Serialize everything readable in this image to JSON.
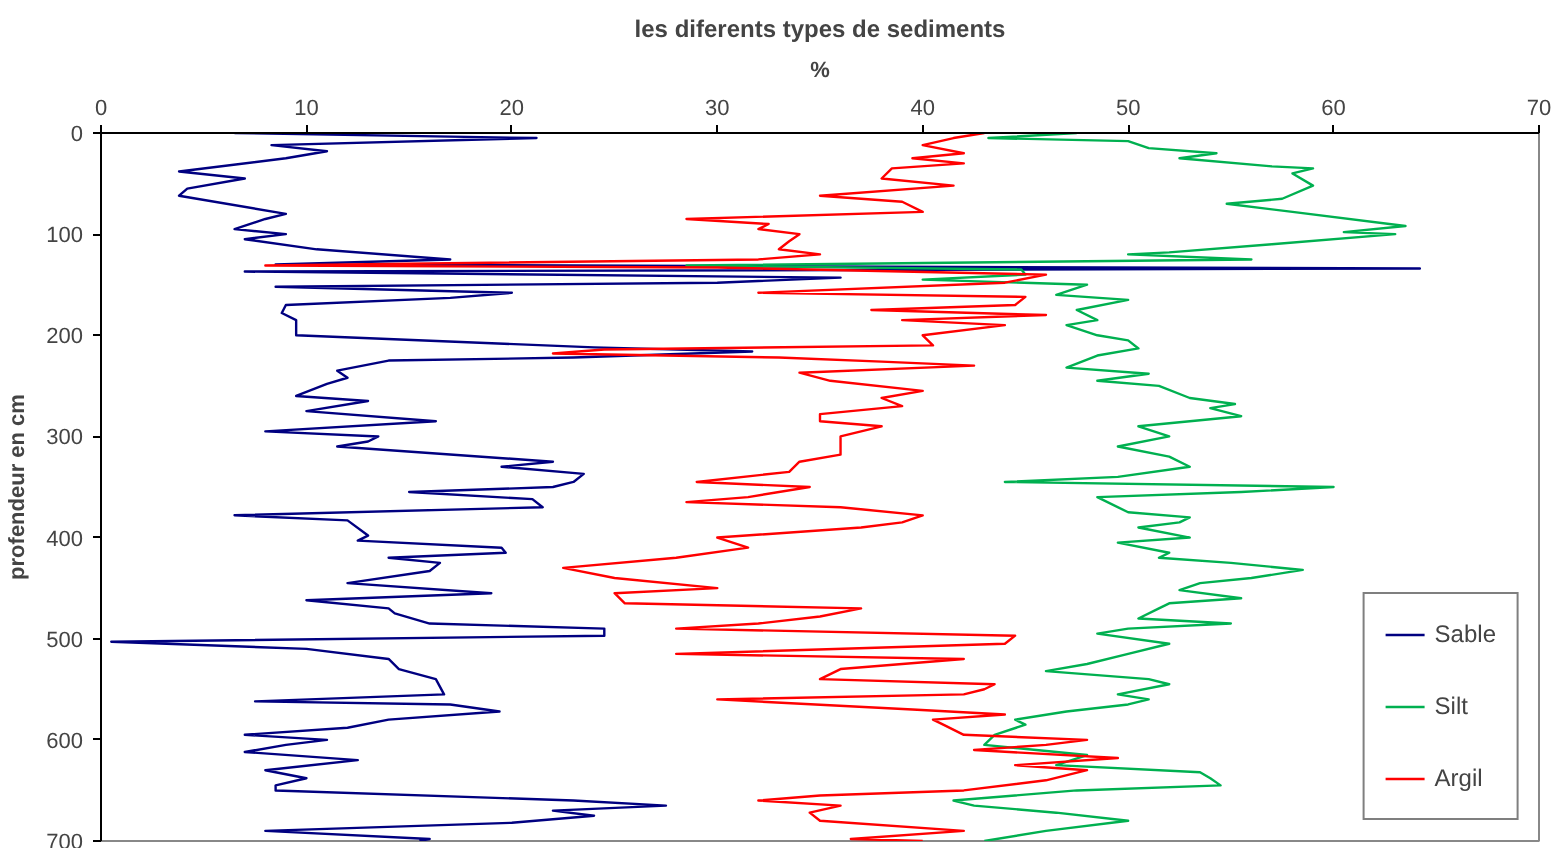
{
  "chart_data": {
    "type": "line",
    "title": "les diferents types de sediments",
    "xlabel": "%",
    "ylabel": "profendeur en cm",
    "xlim": [
      0,
      70
    ],
    "xticks": [
      0,
      10,
      20,
      30,
      40,
      50,
      60,
      70
    ],
    "ylim": [
      700,
      0
    ],
    "yticks": [
      0,
      100,
      200,
      300,
      400,
      500,
      600,
      700
    ],
    "grid": false,
    "legend": "bottom right",
    "marker": "none",
    "line_style": "solid",
    "series": [
      {
        "name": "Sable",
        "color": "#000080",
        "x": [
          6.5,
          21.2,
          8.3,
          11,
          9,
          3.8,
          7,
          4.2,
          3.8,
          9,
          8,
          6.5,
          9,
          7,
          10.5,
          17,
          8.5,
          64.2,
          7,
          36,
          30,
          8.5,
          20,
          17,
          9,
          8.8,
          9.5,
          9.5,
          24,
          31.7,
          23,
          14,
          11.5,
          12,
          11,
          9.5,
          13,
          10,
          16.3,
          8,
          13.5,
          13,
          11.5,
          22,
          19.5,
          23.5,
          23,
          22,
          15,
          21,
          21.5,
          6.5,
          12,
          13,
          12.5,
          19.5,
          19.7,
          14,
          16.5,
          16,
          12,
          19,
          10,
          14,
          14.3,
          16,
          24.5,
          24.5,
          0.5,
          10,
          14,
          14.5,
          16.3,
          16.7,
          7.5,
          17,
          19.4,
          14,
          12,
          7,
          11,
          9,
          7,
          12.5,
          8,
          10,
          8.5,
          8.5,
          23,
          27.5,
          22,
          24,
          20,
          8,
          16,
          15.5
        ],
        "values": [
          0,
          5,
          12,
          18,
          25,
          38,
          45,
          55,
          62,
          80,
          85,
          95,
          100,
          105,
          115,
          125,
          130,
          134,
          137,
          143,
          148,
          152,
          158,
          163,
          170,
          178,
          185,
          200,
          212,
          216,
          222,
          225,
          235,
          242,
          248,
          260,
          265,
          275,
          285,
          295,
          300,
          305,
          310,
          325,
          330,
          337,
          345,
          350,
          355,
          362,
          370,
          378,
          383,
          398,
          403,
          410,
          415,
          420,
          425,
          433,
          445,
          455,
          462,
          470,
          475,
          485,
          490,
          497,
          503,
          510,
          520,
          530,
          540,
          555,
          562,
          565,
          572,
          580,
          588,
          595,
          600,
          605,
          612,
          620,
          630,
          638,
          645,
          650,
          660,
          665,
          670,
          675,
          682,
          690,
          698,
          700
        ]
      },
      {
        "name": "Silt",
        "color": "#00b050",
        "x": [
          47.5,
          43.2,
          50,
          51,
          54.3,
          52.5,
          57,
          59,
          58,
          59,
          57.5,
          54.8,
          58,
          63.5,
          60.5,
          63,
          57,
          52,
          50,
          56,
          28.5,
          44.8,
          45,
          40,
          48,
          46.5,
          50,
          47.5,
          48.5,
          47,
          48.5,
          50,
          50.5,
          48.5,
          47,
          51,
          48.5,
          51.5,
          53,
          55.2,
          54,
          55.5,
          50.5,
          52,
          49.5,
          52,
          53,
          49.5,
          44,
          60,
          55.5,
          48.5,
          50,
          53,
          52.5,
          50.5,
          53,
          49.5,
          52,
          51.5,
          55,
          58.5,
          56,
          53.5,
          52.5,
          55.5,
          52,
          51.5,
          50.5,
          55,
          50,
          48.5,
          52,
          50,
          48,
          46,
          51,
          52,
          49.5,
          51,
          50,
          47,
          44.5,
          45,
          43.5,
          43,
          48,
          46.5,
          53.5,
          54,
          54.5,
          47.5,
          41.5,
          42.5,
          46.5,
          50,
          46,
          43
        ],
        "values": [
          0,
          5,
          8,
          15,
          20,
          25,
          33,
          35,
          40,
          52,
          65,
          70,
          78,
          92,
          98,
          100,
          110,
          118,
          120,
          125,
          131,
          135,
          140,
          145,
          150,
          160,
          165,
          175,
          185,
          190,
          200,
          205,
          213,
          220,
          232,
          238,
          245,
          250,
          262,
          268,
          272,
          280,
          290,
          300,
          310,
          320,
          330,
          340,
          345,
          350,
          355,
          360,
          375,
          380,
          385,
          390,
          400,
          405,
          415,
          420,
          425,
          432,
          440,
          445,
          452,
          460,
          465,
          470,
          480,
          485,
          490,
          495,
          505,
          515,
          525,
          532,
          540,
          545,
          555,
          560,
          565,
          572,
          580,
          585,
          595,
          605,
          615,
          625,
          632,
          638,
          645,
          650,
          660,
          665,
          672,
          680,
          690,
          700
        ]
      },
      {
        "name": "Argil",
        "color": "#ff0000",
        "x": [
          43,
          41.5,
          40,
          42,
          39.5,
          42,
          38.5,
          38,
          41.5,
          35,
          39,
          40,
          28.5,
          32.5,
          32,
          34,
          33.5,
          33,
          35,
          32,
          8,
          30,
          46,
          44,
          32,
          45,
          44.5,
          37.5,
          46,
          39,
          44,
          40,
          40.5,
          24.5,
          22,
          33,
          38,
          42.5,
          34,
          35.5,
          40,
          38,
          39,
          35,
          35,
          38,
          36,
          36,
          36,
          34,
          33.5,
          29,
          34.5,
          31.5,
          28.5,
          36,
          40,
          39,
          37,
          30,
          31.5,
          28,
          22.5,
          25,
          30,
          25,
          25.5,
          37,
          35,
          32,
          28,
          44.5,
          44,
          28,
          42,
          36,
          35,
          43.5,
          43,
          42,
          30,
          39.5,
          44,
          40.5,
          41,
          42,
          48,
          46,
          42.5,
          49.5,
          44.5,
          48,
          46,
          42,
          35,
          32,
          36,
          34.5,
          35,
          42,
          36.5,
          40
        ],
        "values": [
          0,
          5,
          12,
          20,
          25,
          30,
          35,
          45,
          52,
          62,
          68,
          78,
          85,
          90,
          95,
          100,
          107,
          115,
          120,
          125,
          131,
          133,
          140,
          148,
          158,
          162,
          170,
          175,
          180,
          185,
          190,
          200,
          210,
          214,
          218,
          222,
          226,
          230,
          237,
          245,
          255,
          262,
          270,
          278,
          285,
          290,
          300,
          308,
          318,
          325,
          335,
          345,
          350,
          360,
          365,
          370,
          378,
          385,
          390,
          400,
          410,
          420,
          430,
          440,
          450,
          455,
          465,
          470,
          478,
          485,
          490,
          497,
          505,
          515,
          520,
          530,
          540,
          545,
          550,
          555,
          560,
          570,
          575,
          580,
          585,
          595,
          600,
          605,
          610,
          618,
          625,
          630,
          640,
          650,
          655,
          660,
          665,
          672,
          680,
          690,
          698,
          700
        ]
      }
    ]
  }
}
